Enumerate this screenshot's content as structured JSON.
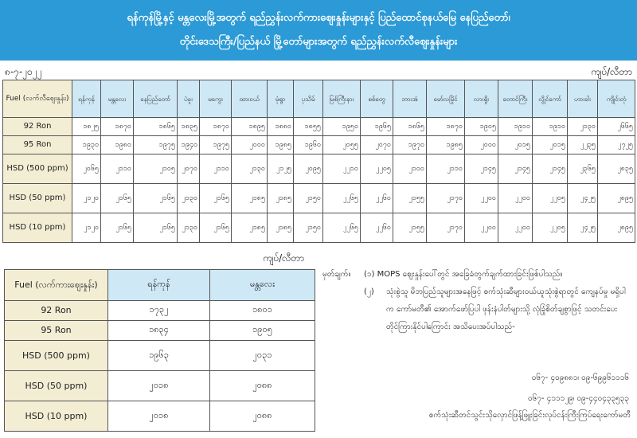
{
  "banner": {
    "line1": "ရန်ကုန်မြို့နှင့် မန္တလေးမြို့အတွက် ရည်ညွှန်းလက်ကားဈေးနှုန်းများနှင့် ပြည်ထောင်စုနယ်မြေ နေပြည်တော်၊",
    "line2": "တိုင်းဒေသကြီး/ပြည်နယ် မြို့တော်များအတွက် ရည်ညွှန်းလက်လီဈေးနှုန်းများ"
  },
  "date": "၈-၇-၂၀၂၂",
  "unit": "ကျပ်/လီတာ",
  "retail_table": {
    "fuel_header": "Fuel (လက်လီဈေးနှုန်း)",
    "cities": [
      "ရန်ကုန်",
      "မန္တလေး",
      "နေပြည်တော်",
      "ပဲခူး",
      "မကွေး",
      "ထားဝယ်",
      "မုံရွာ",
      "ပုသိမ်",
      "မြစ်ကြီးနား",
      "စစ်တွေ",
      "ဘားအံ",
      "မော်လမြိုင်",
      "လားရှိုး",
      "တောင်ကြီး",
      "လွိုင်ကော်",
      "ဟားခါး",
      "ကျိုင်းတုံ"
    ],
    "rows": [
      {
        "fuel": "92 Ron",
        "values": [
          "၁၈၂၅",
          "၁၈၇၀",
          "၁၈၆၅",
          "၁၈၃၅",
          "၁၈၇၀",
          "၁၈၉၅",
          "၁၈၈၀",
          "၁၈၅၅",
          "၁၉၅၀",
          "၁၉၆၅",
          "၁၈၆၅",
          "၁၈၇၀",
          "၁၉၀၅",
          "၁၉၁၀",
          "၁၉၁၀",
          "၂၁၃၀",
          "၂၆၆၅"
        ]
      },
      {
        "fuel": "95 Ron",
        "values": [
          "၁၉၃၀",
          "၁၉၈၀",
          "၁၉၇၅",
          "၁၉၄၀",
          "၁၉၇၅",
          "၂၀၀၀",
          "၁၉၈၅",
          "၁၉၆၀",
          "၂၀၅၅",
          "၂၀၇၀",
          "၁၉၇၀",
          "၁၉၈၅",
          "၂၀၀၀",
          "၂၀၁၅",
          "၂၀၁၅",
          "၂၂၃၅",
          "၂၇၂၅"
        ]
      },
      {
        "fuel": "HSD (500 ppm)",
        "values": [
          "၂၀၆၅",
          "၂၁၁၀",
          "၂၁၀၅",
          "၂၀၇၀",
          "၂၁၁၀",
          "၂၁၃၀",
          "၂၁၂၅",
          "၂၀၉၅",
          "၂၂၁၀",
          "၂၂၀၅",
          "၂၁၀၀",
          "၂၁၁၀",
          "၂၁၄၅",
          "၂၁၄၅",
          "၂၁၄၅",
          "၂၃၆၅",
          "၂၈၃၅"
        ]
      },
      {
        "fuel": "HSD (50 ppm)",
        "values": [
          "၂၁၂၀",
          "၂၁၆၅",
          "၂၁၆၅",
          "၂၁၃၀",
          "၂၁၆၅",
          "၂၁၈၅",
          "၂၁၈၅",
          "၂၁၅၀",
          "၂၂၆၅",
          "၂၂၆၀",
          "၂၁၅၅",
          "၂၁၇၀",
          "၂၂၀၀",
          "၂၂၀၀",
          "၂၂၀၅",
          "၂၄၂၅",
          "၂၈၉၅"
        ]
      },
      {
        "fuel": "HSD (10 ppm)",
        "values": [
          "၂၁၂၀",
          "၂၁၆၅",
          "၂၁၆၅",
          "၂၁၃၀",
          "၂၁၆၅",
          "၂၁၈၅",
          "၂၁၈၅",
          "၂၁၅၀",
          "၂၂၆၅",
          "၂၂၆၀",
          "၂၁၅၅",
          "၂၁၇၀",
          "၂၂၀၀",
          "၂၂၀၀",
          "၂၂၀၅",
          "၂၄၂၅",
          "၂၈၉၅"
        ]
      }
    ]
  },
  "wholesale_table": {
    "fuel_header": "Fuel (လက်ကားဈေးနှုန်း)",
    "cities": [
      "ရန်ကုန်",
      "မန္တလေး"
    ],
    "rows": [
      {
        "fuel": "92 Ron",
        "values": [
          "၁၇၃၂",
          "၁၈၀၁"
        ]
      },
      {
        "fuel": "95 Ron",
        "values": [
          "၁၈၃၄",
          "၁၉၀၅"
        ]
      },
      {
        "fuel": "HSD (500 ppm)",
        "values": [
          "၁၉၆၃",
          "၂၀၃၁"
        ]
      },
      {
        "fuel": "HSD (50 ppm)",
        "values": [
          "၂၀၁၈",
          "၂၀၈၈"
        ]
      },
      {
        "fuel": "HSD (10 ppm)",
        "values": [
          "၂၀၁၈",
          "၂၀၈၈"
        ]
      }
    ]
  },
  "notes": {
    "label": "မှတ်ချက်။",
    "n1_num": "(၁)",
    "n1_text": "MOPS ဈေးနှုန်းပေါ်တွင် အခြေခံတွက်ချက်ထားခြင်းဖြစ်ပါသည်။",
    "n2_num": "(၂)",
    "n2_text": "သုံးစွဲသူ မိဘပြည်သူများအနေဖြင့် စက်သုံးဆီများဝယ်ယူသုံးစွဲရာတွင် ကျေနပ်မှု မရှိပါက ကော်မတီ၏ အောက်ဖော်ပြပါ ဖုန်းနံပါတ်များသို့ လုံခြုံစိတ်ချစွာဖြင့် သတင်းပေးတိုင်ကြားနိုင်ပါကြောင်း အသိပေးအပ်ပါသည်-"
  },
  "phones": [
    "၀၆၇- ၄၀၉၈၈၁၊ ၀၉-၆၉၉၆၁၁၁၆",
    "၀၆၇- ၄၁၁၁၂၉၊ ၀၉-၄၄၀၄၃၃၅၃၃"
  ],
  "signature": "စက်သုံးဆီတင်သွင်းသိုလှောင်ဖြန့်ဖြူးခြင်းလုပ်ငန်းကြီးကြပ်ရေးကော်မတီ",
  "colors": {
    "banner": "#2b9ad6",
    "header_cell": "#cfe8f6",
    "fuel_cell": "#f3edd4"
  }
}
